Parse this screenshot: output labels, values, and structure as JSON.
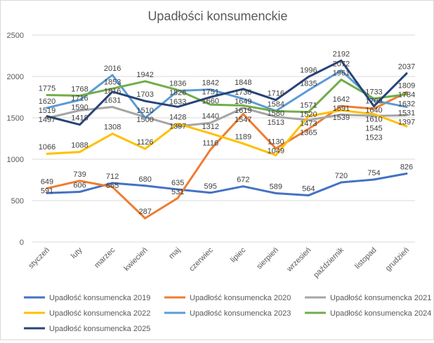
{
  "chart_data": {
    "type": "line",
    "title": "Upadłości konsumenckie",
    "categories": [
      "styczeń",
      "luty",
      "marzec",
      "kwiecień",
      "maj",
      "czerwiec",
      "lipiec",
      "sierpień",
      "wrzesień",
      "październik",
      "listopad",
      "grudzień"
    ],
    "ylim": [
      0,
      2500
    ],
    "yticks": [
      0,
      500,
      1000,
      1500,
      2000,
      2500
    ],
    "grid": true,
    "legend": "bottom",
    "series": [
      {
        "name": "Upadłość konsumencka 2019",
        "color": "#4472C4",
        "values": [
          591,
          606,
          712,
          680,
          635,
          595,
          672,
          589,
          564,
          720,
          754,
          826
        ]
      },
      {
        "name": "Upadłość konsumencka 2020",
        "color": "#ED7D31",
        "values": [
          649,
          739,
          665,
          287,
          531,
          1116,
          1547,
          1130,
          1365,
          1642,
          1610,
          1809
        ]
      },
      {
        "name": "Upadłość konsumencka 2021",
        "color": "#A5A5A5",
        "values": [
          1497,
          1590,
          1631,
          1510,
          1397,
          1440,
          1619,
          1513,
          1473,
          1539,
          1523,
          1531
        ]
      },
      {
        "name": "Upadłość konsumencka 2022",
        "color": "#FFC000",
        "values": [
          1066,
          1088,
          1308,
          1126,
          1428,
          1312,
          1189,
          1049,
          1520,
          1591,
          1545,
          1397
        ]
      },
      {
        "name": "Upadłość konsumencka 2023",
        "color": "#5B9BD5",
        "values": [
          1620,
          1716,
          2016,
          1500,
          1826,
          1842,
          1730,
          1584,
          1835,
          2072,
          1709,
          1632
        ]
      },
      {
        "name": "Upadłość konsumencka 2024",
        "color": "#70AD47",
        "values": [
          1775,
          1768,
          1853,
          1942,
          1836,
          1660,
          1649,
          1580,
          1571,
          1961,
          1733,
          1784
        ]
      },
      {
        "name": "Upadłość konsumencka 2025",
        "color": "#264478",
        "values": [
          1519,
          1418,
          1816,
          1703,
          1633,
          1751,
          1848,
          1716,
          1996,
          2192,
          1640,
          2037
        ]
      }
    ]
  }
}
